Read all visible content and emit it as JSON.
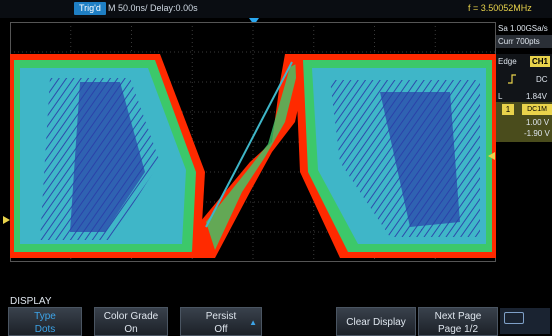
{
  "top_bar": {
    "trigger_status": "Trig'd",
    "timebase": "M 50.0ns/",
    "delay": "Delay:0.00s",
    "frequency": "f = 3.50052MHz"
  },
  "acquisition": {
    "sample_rate": "Sa 1.00GSa/s",
    "memory_depth": "Curr 700pts"
  },
  "trigger": {
    "type": "Edge",
    "source": "CH1",
    "coupling": "DC",
    "level_label": "L",
    "level": "1.84V"
  },
  "channel": {
    "number": "1",
    "coupling": "DC1M",
    "scale": "1.00 V",
    "offset": "-1.90 V"
  },
  "menu": {
    "title": "DISPLAY",
    "softkeys": [
      {
        "line1": "Type",
        "line2": "Dots"
      },
      {
        "line1": "Color Grade",
        "line2": "On"
      },
      {
        "line1": "Persist",
        "line2": "Off"
      },
      {
        "line1": "Clear Display",
        "line2": ""
      },
      {
        "line1": "Next Page",
        "line2": "Page 1/2"
      }
    ]
  },
  "colors": {
    "accent_blue": "#3da4e8",
    "channel_yellow": "#e9d34b",
    "grade_red": "#ff2a00",
    "grade_green": "#3cc86a",
    "grade_cyan": "#3fb6c8",
    "grade_blue": "#2a3fa8"
  }
}
